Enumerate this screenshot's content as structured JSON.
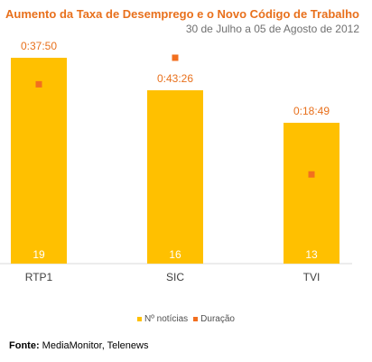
{
  "colors": {
    "bar": "#ffc000",
    "marker": "#f26f1f",
    "title": "#e8701c"
  },
  "chart_data": {
    "type": "bar",
    "title": "Aumento da Taxa de Desemprego e o Novo Código de Trabalho",
    "subtitle": "30 de Julho a 05 de Agosto de 2012",
    "categories": [
      "RTP1",
      "SIC",
      "TVI"
    ],
    "series": [
      {
        "name": "Nº notícias",
        "type": "bar",
        "values": [
          19,
          16,
          13
        ]
      },
      {
        "name": "Duração",
        "type": "marker",
        "values": [
          "0:37:50",
          "0:43:26",
          "0:18:49"
        ]
      }
    ],
    "ylim_count": [
      0,
      21
    ],
    "ylim_duration_seconds": [
      0,
      2880
    ],
    "legend_position": "bottom",
    "grid": false
  },
  "source": {
    "label": "Fonte:",
    "text": "MediaMonitor, Telenews"
  }
}
